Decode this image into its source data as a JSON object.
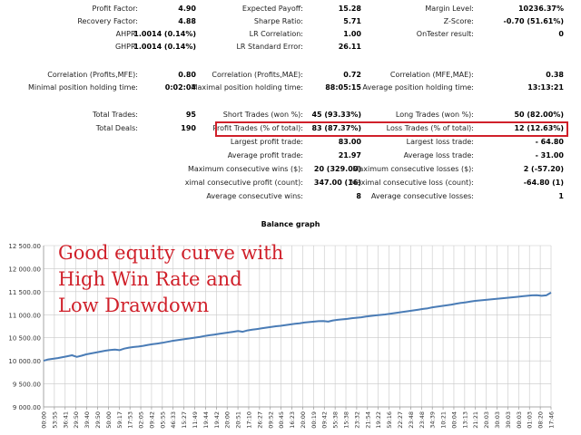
{
  "rows": [
    {
      "key": "r1",
      "cells": [
        [
          "Profit Factor:",
          "4.90"
        ],
        [
          "Expected Payoff:",
          "15.28"
        ],
        [
          "Margin Level:",
          "10236.37%"
        ]
      ]
    },
    {
      "key": "r2",
      "cells": [
        [
          "Recovery Factor:",
          "4.88"
        ],
        [
          "Sharpe Ratio:",
          "5.71"
        ],
        [
          "Z-Score:",
          "-0.70 (51.61%)"
        ]
      ]
    },
    {
      "key": "r3",
      "cells": [
        [
          "AHPR:",
          "1.0014 (0.14%)"
        ],
        [
          "LR Correlation:",
          "1.00"
        ],
        [
          "OnTester result:",
          "0"
        ]
      ]
    },
    {
      "key": "r4",
      "cells": [
        [
          "GHPR:",
          "1.0014 (0.14%)"
        ],
        [
          "LR Standard Error:",
          "26.11"
        ],
        null
      ]
    },
    {
      "key": "r5",
      "cells": [
        [
          "Correlation (Profits,MFE):",
          "0.80"
        ],
        [
          "Correlation (Profits,MAE):",
          "0.72"
        ],
        [
          "Correlation (MFE,MAE):",
          "0.38"
        ]
      ]
    },
    {
      "key": "r6",
      "cells": [
        [
          "Minimal position holding time:",
          "0:02:04"
        ],
        [
          "Maximal position holding time:",
          "88:05:15"
        ],
        [
          "Average position holding time:",
          "13:13:21"
        ]
      ]
    },
    {
      "key": "r7",
      "cells": [
        [
          "Total Trades:",
          "95"
        ],
        [
          "Short Trades (won %):",
          "45 (93.33%)"
        ],
        [
          "Long Trades (won %):",
          "50 (82.00%)"
        ]
      ]
    },
    {
      "key": "r8",
      "cells": [
        [
          "Total Deals:",
          "190"
        ],
        [
          "Profit Trades (% of total):",
          "83 (87.37%)"
        ],
        [
          "Loss Trades (% of total):",
          "12 (12.63%)"
        ]
      ]
    },
    {
      "key": "r9",
      "cells": [
        null,
        [
          "Largest profit trade:",
          "83.00"
        ],
        [
          "Largest loss trade:",
          "- 64.80"
        ]
      ]
    },
    {
      "key": "r10",
      "cells": [
        null,
        [
          "Average profit trade:",
          "21.97"
        ],
        [
          "Average loss trade:",
          "- 31.00"
        ]
      ]
    },
    {
      "key": "r11",
      "cells": [
        null,
        [
          "Maximum consecutive wins ($):",
          "20 (329.00)"
        ],
        [
          "Maximum consecutive losses ($):",
          "2 (-57.20)"
        ]
      ]
    },
    {
      "key": "r12",
      "cells": [
        null,
        [
          "ximal consecutive profit (count):",
          "347.00 (16)"
        ],
        [
          "Maximal consecutive loss (count):",
          "-64.80 (1)"
        ]
      ]
    },
    {
      "key": "r13",
      "cells": [
        null,
        [
          "Average consecutive wins:",
          "8"
        ],
        [
          "Average consecutive losses:",
          "1"
        ]
      ]
    }
  ],
  "colors": {
    "line": "#4a7cb6",
    "highlight": "#d0202a",
    "grid": "#c8c8c8",
    "annotation": "#d0202a"
  },
  "graph_title": "Balance graph",
  "annotation": [
    "Good equity curve with",
    "High Win Rate and",
    "Low Drawdown"
  ],
  "chart_data": {
    "type": "line",
    "title": "Balance graph",
    "ylim": [
      9000,
      12500
    ],
    "yticks": [
      "9 000.00",
      "9 500.00",
      "10 000.00",
      "10 500.00",
      "11 000.00",
      "11 500.00",
      "12 000.00",
      "12 500.00"
    ],
    "xticks": [
      "00:00",
      "53:55",
      "36:41",
      "29:50",
      "39:40",
      "29:50",
      "50:00",
      "59:17",
      "17:53",
      "02:05",
      "09:42",
      "05:55",
      "46:33",
      "15:27",
      "11:49",
      "19:44",
      "19:42",
      "20:00",
      "20:51",
      "17:10",
      "26:27",
      "09:52",
      "00:45",
      "16:23",
      "20:00",
      "00:19",
      "09:42",
      "55:38",
      "15:38",
      "23:32",
      "21:54",
      "19:22",
      "59:16",
      "22:27",
      "23:48",
      "23:48",
      "34:39",
      "10:21",
      "00:04",
      "13:13",
      "21:21",
      "20:03",
      "30:03",
      "30:03",
      "00:03",
      "01:03",
      "08:20",
      "17:46"
    ],
    "series": [
      {
        "values": [
          10000,
          10030,
          10045,
          10060,
          10080,
          10100,
          10120,
          10085,
          10110,
          10140,
          10160,
          10180,
          10200,
          10220,
          10235,
          10245,
          10230,
          10265,
          10285,
          10300,
          10310,
          10325,
          10345,
          10360,
          10375,
          10390,
          10410,
          10430,
          10445,
          10460,
          10475,
          10490,
          10505,
          10520,
          10540,
          10555,
          10570,
          10585,
          10600,
          10615,
          10630,
          10645,
          10630,
          10660,
          10675,
          10690,
          10705,
          10720,
          10735,
          10750,
          10760,
          10775,
          10790,
          10805,
          10815,
          10830,
          10840,
          10850,
          10860,
          10865,
          10850,
          10875,
          10890,
          10900,
          10910,
          10925,
          10935,
          10945,
          10960,
          10975,
          10985,
          10995,
          11005,
          11020,
          11035,
          11050,
          11065,
          11080,
          11095,
          11110,
          11125,
          11140,
          11160,
          11175,
          11190,
          11205,
          11220,
          11240,
          11255,
          11270,
          11285,
          11300,
          11310,
          11320,
          11330,
          11340,
          11350,
          11360,
          11370,
          11380,
          11390,
          11400,
          11410,
          11420,
          11425,
          11410,
          11420,
          11480
        ]
      }
    ]
  }
}
